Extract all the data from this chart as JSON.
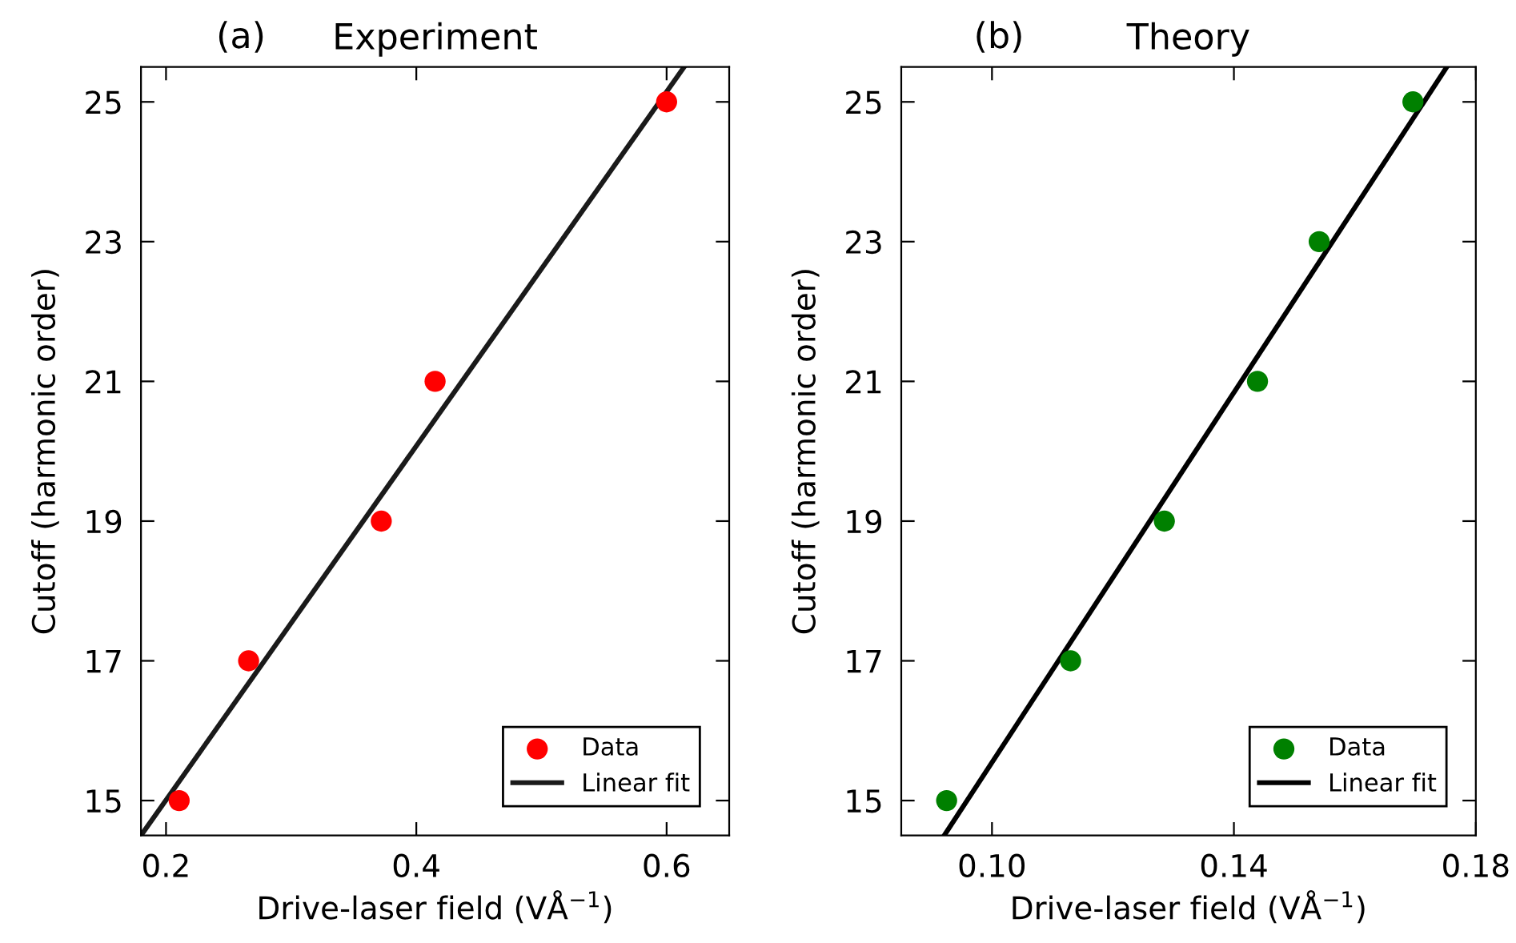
{
  "chart_data": [
    {
      "type": "scatter",
      "title": "Experiment",
      "annotations": [
        "(a)"
      ],
      "xlabel": "Drive-laser field (VÅ$^{−1}$)",
      "ylabel": "Cutoff (harmonic order)",
      "xlim": [
        0.18,
        0.65
      ],
      "xticks": [
        0.2,
        0.4,
        0.6
      ],
      "ylim": [
        14.5,
        25.5
      ],
      "yticks": [
        15,
        17,
        19,
        21,
        23,
        25
      ],
      "grid": false,
      "legend": "bottom right",
      "marker": "circle",
      "series": [
        {
          "name": "Data",
          "color": "#ff0000",
          "x": [
            0.2105,
            0.266,
            0.372,
            0.415,
            0.6
          ],
          "values": [
            15,
            17,
            19,
            21,
            25
          ]
        },
        {
          "name": "Linear fit",
          "type": "line",
          "color": "#1a1a1a",
          "marker": "none",
          "line_style": "solid",
          "x": [
            0.18,
            0.614
          ],
          "values": [
            14.5,
            25.5
          ]
        }
      ]
    },
    {
      "type": "scatter",
      "title": "Theory",
      "annotations": [
        "(b)"
      ],
      "xlabel": "Drive-laser field (VÅ$^{−1}$)",
      "ylabel": "Cutoff (harmonic order)",
      "xlim": [
        0.085,
        0.18
      ],
      "xticks": [
        {
          "value": 0.1,
          "label": "0.10"
        },
        {
          "value": 0.14,
          "label": "0.14"
        },
        {
          "value": 0.18,
          "label": "0.18"
        }
      ],
      "ylim": [
        14.5,
        25.5
      ],
      "yticks": [
        15,
        17,
        19,
        21,
        23,
        25
      ],
      "grid": false,
      "legend": "bottom right",
      "marker": "circle",
      "series": [
        {
          "name": "Data",
          "color": "#008000",
          "x": [
            0.0925,
            0.113,
            0.1285,
            0.1439,
            0.1541,
            0.1696
          ],
          "values": [
            15,
            17,
            19,
            21,
            23,
            25
          ]
        },
        {
          "name": "Linear fit",
          "type": "line",
          "color": "#000000",
          "marker": "none",
          "line_style": "solid",
          "x": [
            0.0921,
            0.1752
          ],
          "values": [
            14.5,
            25.5
          ]
        }
      ]
    }
  ]
}
